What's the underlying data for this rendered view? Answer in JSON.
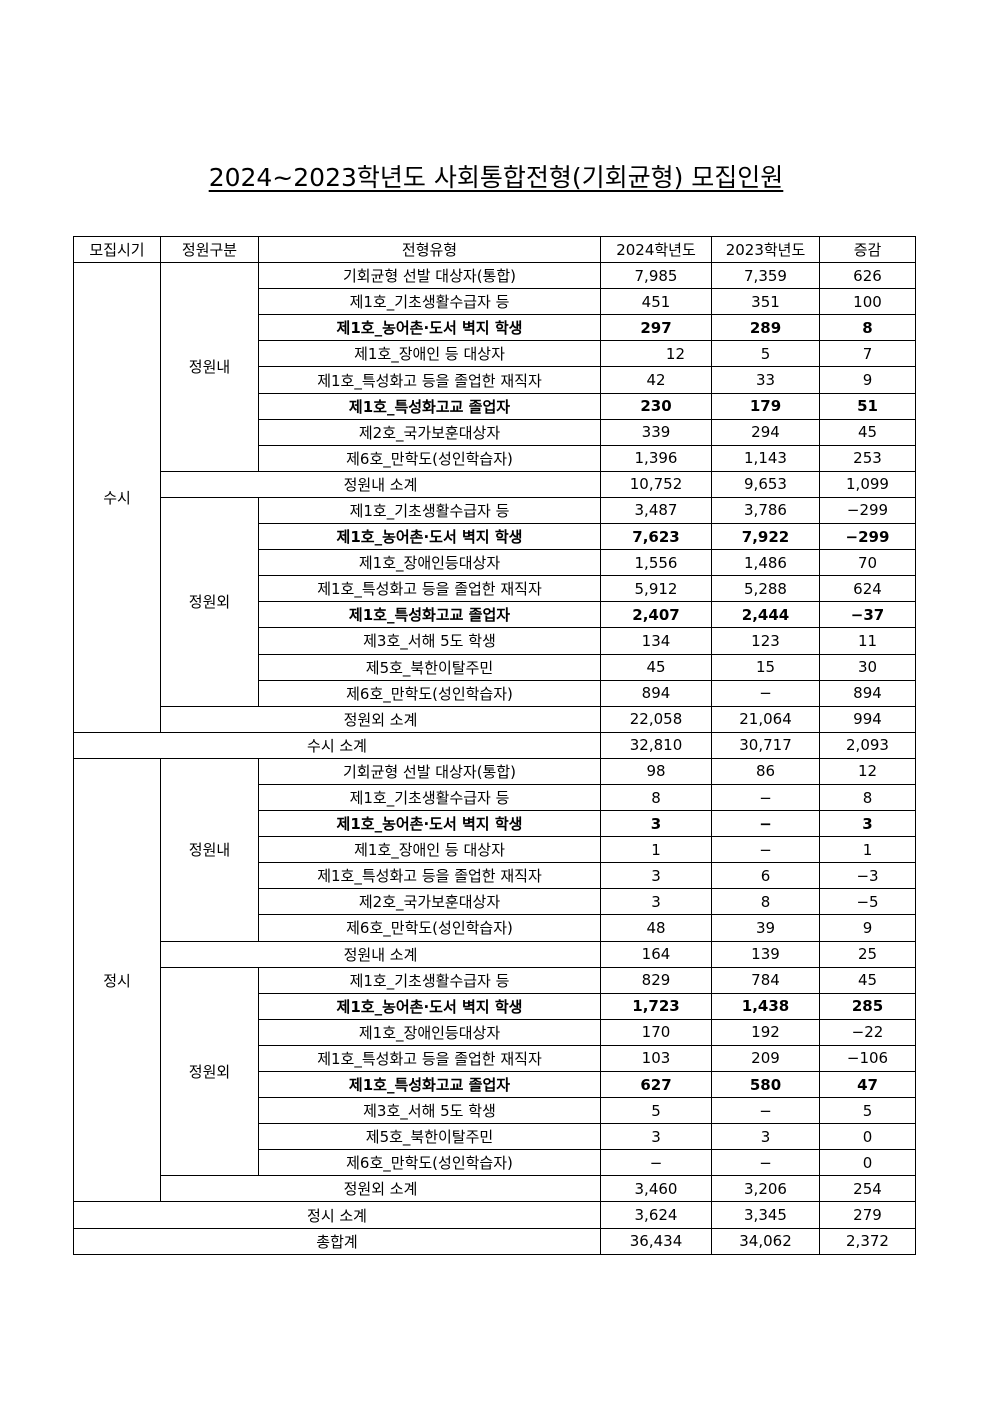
{
  "title": "2024~2023학년도 사회통합전형(기회균형) 모집인원",
  "headers": [
    "모집시기",
    "정원구분",
    "전형유형",
    "2024학년도",
    "2023학년도",
    "증감"
  ],
  "sections": [
    {
      "label": "수시",
      "groups": [
        {
          "label": "정원내",
          "rows": [
            {
              "type": "기회균형 선발 대상자(통합)",
              "y2024": "7,985",
              "y2023": "7,359",
              "diff": "626",
              "bold": false
            },
            {
              "type": "제1호_기초생활수급자 등",
              "y2024": "451",
              "y2023": "351",
              "diff": "100",
              "bold": false
            },
            {
              "type": "제1호_농어촌·도서 벽지 학생",
              "y2024": "297",
              "y2023": "289",
              "diff": "8",
              "bold": true
            },
            {
              "type": "제1호_장애인 등 대상자",
              "y2024": "12",
              "y2023": "5",
              "diff": "7",
              "bold": false
            },
            {
              "type": "제1호_특성화고 등을 졸업한 재직자",
              "y2024": "42",
              "y2023": "33",
              "diff": "9",
              "bold": false
            },
            {
              "type": "제1호_특성화고교 졸업자",
              "y2024": "230",
              "y2023": "179",
              "diff": "51",
              "bold": true
            },
            {
              "type": "제2호_국가보훈대상자",
              "y2024": "339",
              "y2023": "294",
              "diff": "45",
              "bold": false
            },
            {
              "type": "제6호_만학도(성인학습자)",
              "y2024": "1,396",
              "y2023": "1,143",
              "diff": "253",
              "bold": false
            }
          ],
          "subtotal": {
            "label": "정원내 소계",
            "y2024": "10,752",
            "y2023": "9,653",
            "diff": "1,099"
          }
        },
        {
          "label": "정원외",
          "rows": [
            {
              "type": "제1호_기초생활수급자 등",
              "y2024": "3,487",
              "y2023": "3,786",
              "diff": "−299",
              "bold": false
            },
            {
              "type": "제1호_농어촌·도서 벽지 학생",
              "y2024": "7,623",
              "y2023": "7,922",
              "diff": "−299",
              "bold": true
            },
            {
              "type": "제1호_장애인등대상자",
              "y2024": "1,556",
              "y2023": "1,486",
              "diff": "70",
              "bold": false
            },
            {
              "type": "제1호_특성화고 등을 졸업한 재직자",
              "y2024": "5,912",
              "y2023": "5,288",
              "diff": "624",
              "bold": false
            },
            {
              "type": "제1호_특성화고교 졸업자",
              "y2024": "2,407",
              "y2023": "2,444",
              "diff": "−37",
              "bold": true
            },
            {
              "type": "제3호_서해 5도 학생",
              "y2024": "134",
              "y2023": "123",
              "diff": "11",
              "bold": false
            },
            {
              "type": "제5호_북한이탈주민",
              "y2024": "45",
              "y2023": "15",
              "diff": "30",
              "bold": false
            },
            {
              "type": "제6호_만학도(성인학습자)",
              "y2024": "894",
              "y2023": "−",
              "diff": "894",
              "bold": false
            }
          ],
          "subtotal": {
            "label": "정원외 소계",
            "y2024": "22,058",
            "y2023": "21,064",
            "diff": "994"
          }
        }
      ],
      "total": {
        "label": "수시 소계",
        "y2024": "32,810",
        "y2023": "30,717",
        "diff": "2,093"
      }
    },
    {
      "label": "정시",
      "groups": [
        {
          "label": "정원내",
          "rows": [
            {
              "type": "기회균형 선발 대상자(통합)",
              "y2024": "98",
              "y2023": "86",
              "diff": "12",
              "bold": false
            },
            {
              "type": "제1호_기초생활수급자 등",
              "y2024": "8",
              "y2023": "−",
              "diff": "8",
              "bold": false
            },
            {
              "type": "제1호_농어촌·도서 벽지 학생",
              "y2024": "3",
              "y2023": "−",
              "diff": "3",
              "bold": true
            },
            {
              "type": "제1호_장애인 등 대상자",
              "y2024": "1",
              "y2023": "−",
              "diff": "1",
              "bold": false
            },
            {
              "type": "제1호_특성화고 등을 졸업한 재직자",
              "y2024": "3",
              "y2023": "6",
              "diff": "−3",
              "bold": false
            },
            {
              "type": "제2호_국가보훈대상자",
              "y2024": "3",
              "y2023": "8",
              "diff": "−5",
              "bold": false
            },
            {
              "type": "제6호_만학도(성인학습자)",
              "y2024": "48",
              "y2023": "39",
              "diff": "9",
              "bold": false
            }
          ],
          "subtotal": {
            "label": "정원내 소계",
            "y2024": "164",
            "y2023": "139",
            "diff": "25"
          }
        },
        {
          "label": "정원외",
          "rows": [
            {
              "type": "제1호_기초생활수급자 등",
              "y2024": "829",
              "y2023": "784",
              "diff": "45",
              "bold": false
            },
            {
              "type": "제1호_농어촌·도서 벽지 학생",
              "y2024": "1,723",
              "y2023": "1,438",
              "diff": "285",
              "bold": true
            },
            {
              "type": "제1호_장애인등대상자",
              "y2024": "170",
              "y2023": "192",
              "diff": "−22",
              "bold": false
            },
            {
              "type": "제1호_특성화고 등을 졸업한 재직자",
              "y2024": "103",
              "y2023": "209",
              "diff": "−106",
              "bold": false
            },
            {
              "type": "제1호_특성화고교 졸업자",
              "y2024": "627",
              "y2023": "580",
              "diff": "47",
              "bold": true
            },
            {
              "type": "제3호_서해 5도 학생",
              "y2024": "5",
              "y2023": "−",
              "diff": "5",
              "bold": false
            },
            {
              "type": "제5호_북한이탈주민",
              "y2024": "3",
              "y2023": "3",
              "diff": "0",
              "bold": false
            },
            {
              "type": "제6호_만학도(성인학습자)",
              "y2024": "−",
              "y2023": "−",
              "diff": "0",
              "bold": false
            }
          ],
          "subtotal": {
            "label": "정원외 소계",
            "y2024": "3,460",
            "y2023": "3,206",
            "diff": "254"
          }
        }
      ],
      "total": {
        "label": "정시 소계",
        "y2024": "3,624",
        "y2023": "3,345",
        "diff": "279"
      }
    }
  ],
  "grand_total": {
    "label": "총합계",
    "y2024": "36,434",
    "y2023": "34,062",
    "diff": "2,372"
  }
}
